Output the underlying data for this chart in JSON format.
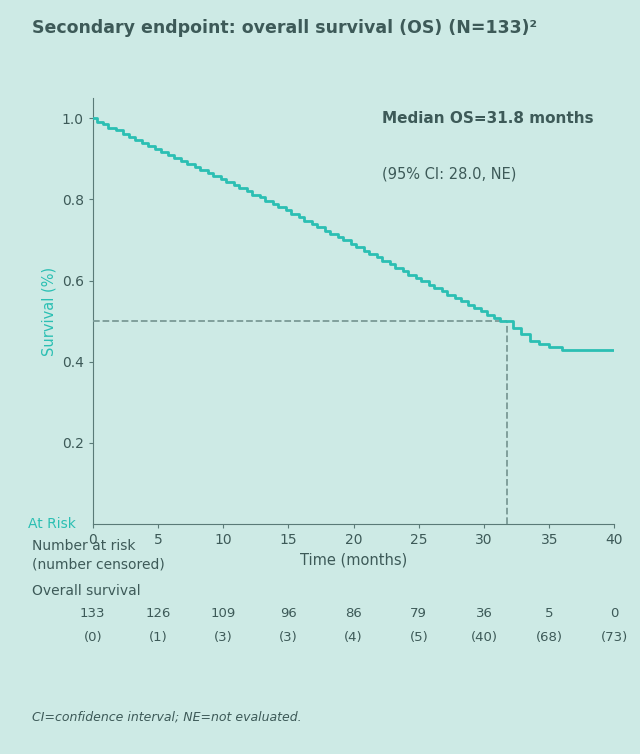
{
  "title": "Secondary endpoint: overall survival (OS) (N=133)²",
  "xlabel": "Time (months)",
  "ylabel": "Survival (%)",
  "background_color": "#cdeae5",
  "curve_color": "#2bbfb3",
  "dashed_line_color": "#7a9a96",
  "title_fontsize": 12.5,
  "axis_label_fontsize": 10.5,
  "tick_fontsize": 10,
  "annotation_bold": "Median OS=31.8 months",
  "annotation_normal": "(95% CI: 28.0, NE)",
  "at_risk_label": "At Risk",
  "xlim": [
    0,
    40
  ],
  "ylim": [
    0,
    1.05
  ],
  "xticks": [
    0,
    5,
    10,
    15,
    20,
    25,
    30,
    35,
    40
  ],
  "yticks": [
    0.2,
    0.4,
    0.6,
    0.8,
    1.0
  ],
  "median_os": 31.8,
  "median_survival": 0.5,
  "table_times": [
    0,
    5,
    10,
    15,
    20,
    25,
    30,
    35,
    40
  ],
  "table_at_risk": [
    133,
    126,
    109,
    96,
    86,
    79,
    36,
    5,
    0
  ],
  "table_censored": [
    0,
    1,
    3,
    3,
    4,
    5,
    40,
    68,
    73
  ],
  "table_label": "Overall survival",
  "table_header": "Number at risk\n(number censored)",
  "footnote": "CI=confidence interval; NE=not evaluated.",
  "text_color": "#3d5a58",
  "km_times": [
    0,
    0.3,
    0.8,
    1.2,
    1.8,
    2.3,
    2.8,
    3.2,
    3.8,
    4.2,
    4.8,
    5.2,
    5.8,
    6.2,
    6.8,
    7.2,
    7.8,
    8.2,
    8.8,
    9.2,
    9.8,
    10.2,
    10.8,
    11.2,
    11.8,
    12.2,
    12.8,
    13.2,
    13.8,
    14.2,
    14.8,
    15.2,
    15.8,
    16.2,
    16.8,
    17.2,
    17.8,
    18.2,
    18.8,
    19.2,
    19.8,
    20.2,
    20.8,
    21.2,
    21.8,
    22.2,
    22.8,
    23.2,
    23.8,
    24.2,
    24.8,
    25.2,
    25.8,
    26.2,
    26.8,
    27.2,
    27.8,
    28.2,
    28.8,
    29.2,
    29.8,
    30.2,
    30.8,
    31.2,
    31.8,
    32.2,
    32.8,
    33.5,
    34.2,
    35.0,
    36.0,
    37.0,
    38.0,
    39.0,
    40.0
  ],
  "km_survival": [
    1.0,
    0.992,
    0.985,
    0.977,
    0.97,
    0.962,
    0.955,
    0.947,
    0.94,
    0.932,
    0.924,
    0.917,
    0.909,
    0.902,
    0.894,
    0.887,
    0.879,
    0.872,
    0.865,
    0.857,
    0.85,
    0.842,
    0.835,
    0.827,
    0.82,
    0.812,
    0.805,
    0.797,
    0.79,
    0.782,
    0.773,
    0.765,
    0.757,
    0.748,
    0.74,
    0.732,
    0.723,
    0.715,
    0.707,
    0.699,
    0.69,
    0.682,
    0.674,
    0.665,
    0.657,
    0.649,
    0.64,
    0.632,
    0.624,
    0.615,
    0.607,
    0.599,
    0.59,
    0.582,
    0.574,
    0.565,
    0.557,
    0.549,
    0.54,
    0.532,
    0.524,
    0.515,
    0.507,
    0.5,
    0.5,
    0.484,
    0.468,
    0.452,
    0.444,
    0.436,
    0.428,
    0.428,
    0.428,
    0.428,
    0.428
  ]
}
